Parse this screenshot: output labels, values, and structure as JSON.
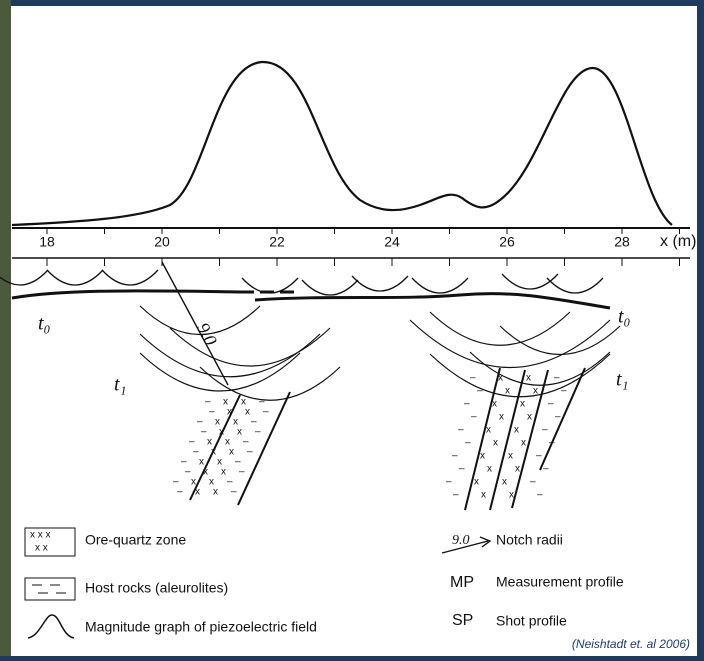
{
  "axis": {
    "ticks": [
      "18",
      "20",
      "22",
      "24",
      "26",
      "28"
    ],
    "label": "x (m)"
  },
  "section": {
    "surface_label": "t₀",
    "depth_label": "t₁",
    "radius_label": "9.0"
  },
  "legend": {
    "left": [
      {
        "label": "Ore-quartz zone"
      },
      {
        "label": "Host rocks (aleurolites)"
      },
      {
        "label": "Magnitude graph of piezoelectric field"
      }
    ],
    "right": [
      {
        "symbol": "9.0",
        "label": "Notch radii"
      },
      {
        "symbol": "MP",
        "label": "Measurement profile"
      },
      {
        "symbol": "SP",
        "label": "Shot profile"
      }
    ]
  },
  "citation": "(Neishtadt et. al 2006)"
}
